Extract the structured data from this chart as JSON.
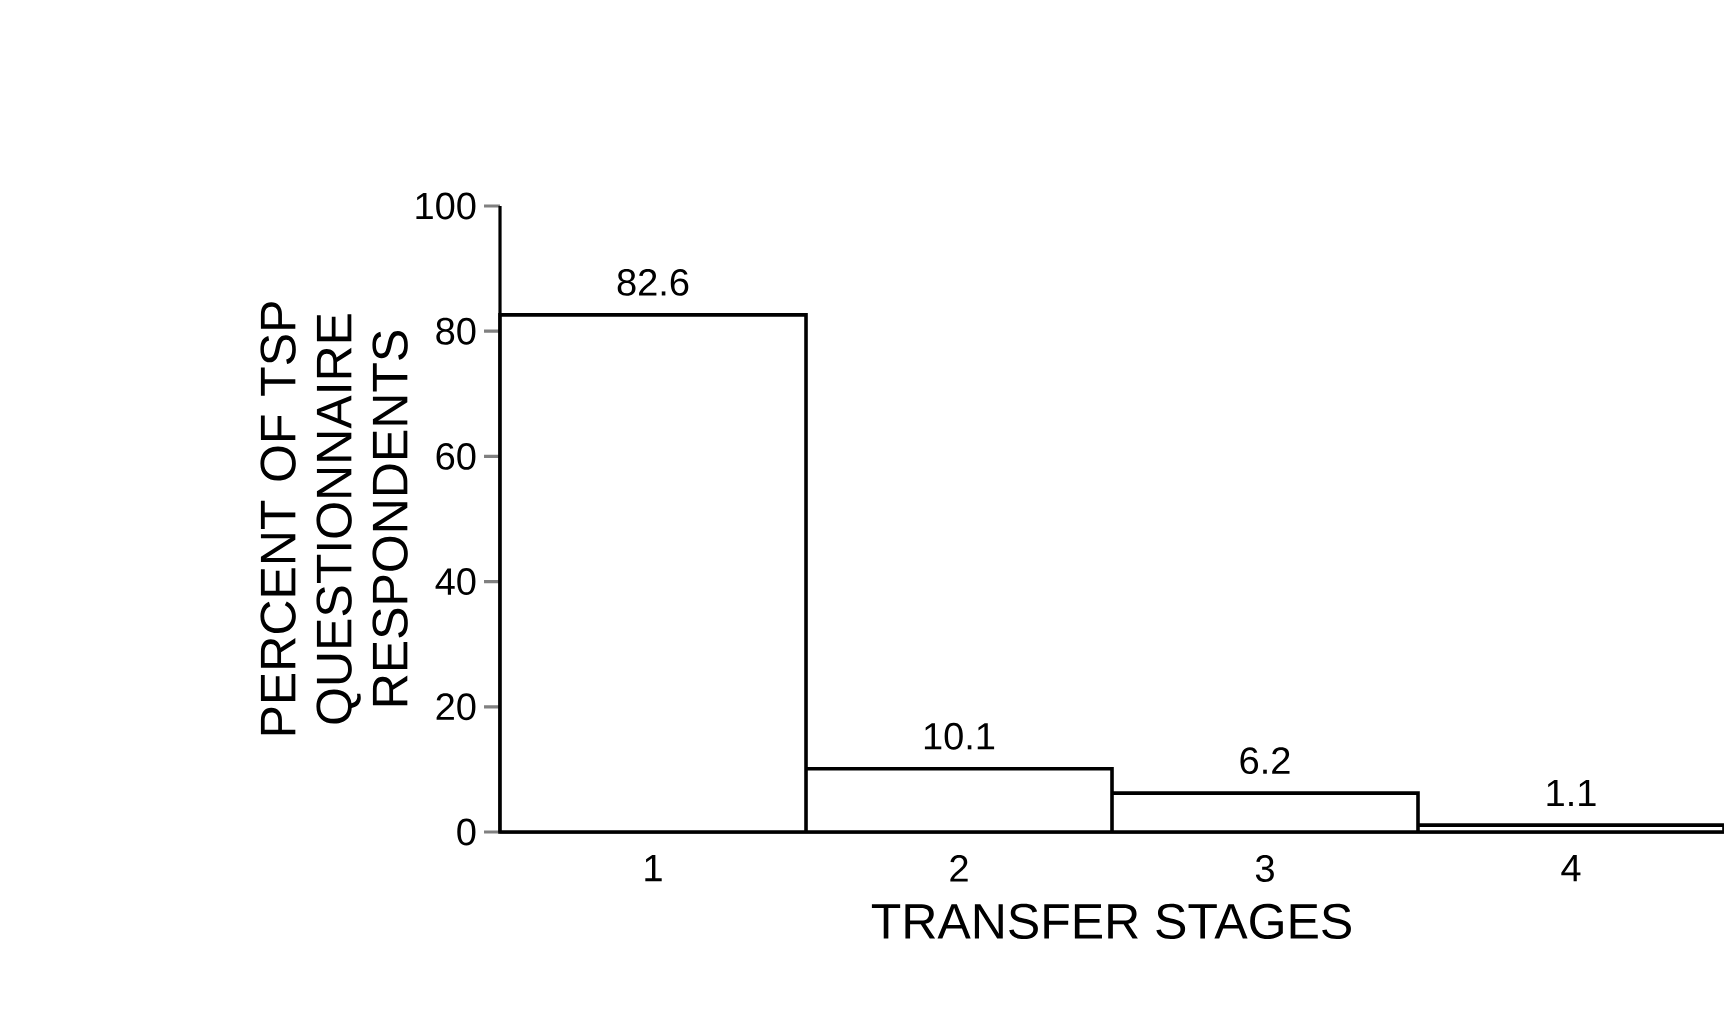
{
  "chart_data": {
    "type": "bar",
    "xlabel": "TRANSFER STAGES",
    "ylabel": "PERCENT OF TSP QUESTIONNAIRE RESPONDENTS",
    "categories": [
      "1",
      "2",
      "3",
      "4"
    ],
    "values": [
      82.6,
      10.1,
      6.2,
      1.1
    ],
    "color": "#ffffff",
    "ylim": [
      0,
      100
    ],
    "yticks": [
      0,
      20,
      40,
      60,
      80,
      100
    ],
    "data_labels": true
  }
}
